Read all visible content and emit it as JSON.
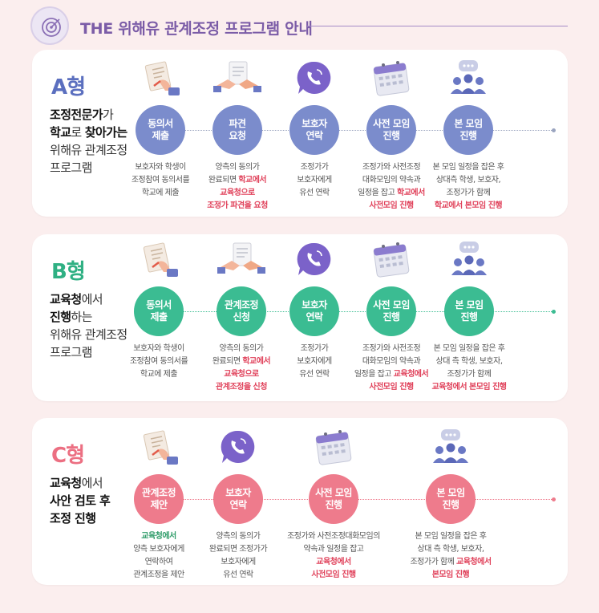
{
  "header": {
    "title": "THE 위해유 관계조정 프로그램 안내"
  },
  "cards": [
    {
      "label": "A형",
      "label_color": "#5b6fbf",
      "desc": [
        [
          {
            "t": "조정전문가",
            "b": true
          },
          {
            "t": "가",
            "b": false
          }
        ],
        [
          {
            "t": "학교",
            "b": true
          },
          {
            "t": "로 ",
            "b": false
          },
          {
            "t": "찾아가는",
            "b": true
          }
        ],
        [
          {
            "t": "위해유 관계조정",
            "b": false
          }
        ],
        [
          {
            "t": "프로그램",
            "b": false
          }
        ]
      ],
      "steps": [
        {
          "icon": "document-hand-icon",
          "circle": "동의서\n제출",
          "text": [
            [
              {
                "t": "보호자와 학생이"
              }
            ],
            [
              {
                "t": "조정참여 동의서를"
              }
            ],
            [
              {
                "t": "학교에 제출"
              }
            ]
          ]
        },
        {
          "icon": "handshake-paper-icon",
          "circle": "파견\n요청",
          "text": [
            [
              {
                "t": "양측의 동의가"
              }
            ],
            [
              {
                "t": "완료되면 "
              },
              {
                "t": "학교에서",
                "h": "r"
              }
            ],
            [
              {
                "t": "교육청으로",
                "h": "r"
              }
            ],
            [
              {
                "t": "조정가 파견을 요청",
                "h": "r"
              }
            ]
          ]
        },
        {
          "icon": "phone-chat-icon",
          "circle": "보호자\n연락",
          "text": [
            [
              {
                "t": "조정가가"
              }
            ],
            [
              {
                "t": "보호자에게"
              }
            ],
            [
              {
                "t": "유선 연락"
              }
            ]
          ]
        },
        {
          "icon": "calendar-icon",
          "circle": "사전 모임\n진행",
          "text": [
            [
              {
                "t": "조정가와 사전조정"
              }
            ],
            [
              {
                "t": "대화모임의 약속과"
              }
            ],
            [
              {
                "t": "일정을 잡고 "
              },
              {
                "t": "학교에서",
                "h": "r"
              }
            ],
            [
              {
                "t": "사전모임 진행",
                "h": "r"
              }
            ]
          ]
        },
        {
          "icon": "meeting-people-icon",
          "circle": "본 모임\n진행",
          "text": [
            [
              {
                "t": "본 모임 일정을 잡은 후"
              }
            ],
            [
              {
                "t": "상대측 학생, 보호자,"
              }
            ],
            [
              {
                "t": "조정가가 함께"
              }
            ],
            [
              {
                "t": "학교에서 본모임 진행",
                "h": "r"
              }
            ]
          ]
        }
      ]
    },
    {
      "label": "B형",
      "label_color": "#2fb083",
      "desc": [
        [
          {
            "t": "교육청",
            "b": true
          },
          {
            "t": "에서",
            "b": false
          }
        ],
        [
          {
            "t": "진행",
            "b": true
          },
          {
            "t": "하는",
            "b": false
          }
        ],
        [
          {
            "t": "위해유 관계조정",
            "b": false
          }
        ],
        [
          {
            "t": "프로그램",
            "b": false
          }
        ]
      ],
      "steps": [
        {
          "icon": "document-hand-icon",
          "circle": "동의서\n제출",
          "text": [
            [
              {
                "t": "보호자와 학생이"
              }
            ],
            [
              {
                "t": "조정참여 동의서를"
              }
            ],
            [
              {
                "t": "학교에 제출"
              }
            ]
          ]
        },
        {
          "icon": "handshake-paper-icon",
          "circle": "관계조정\n신청",
          "text": [
            [
              {
                "t": "양측의 동의가"
              }
            ],
            [
              {
                "t": "완료되면 "
              },
              {
                "t": "학교에서",
                "h": "r"
              }
            ],
            [
              {
                "t": "교육청으로",
                "h": "r"
              }
            ],
            [
              {
                "t": "관계조정을 신청",
                "h": "r"
              }
            ]
          ]
        },
        {
          "icon": "phone-chat-icon",
          "circle": "보호자\n연락",
          "text": [
            [
              {
                "t": "조정가가"
              }
            ],
            [
              {
                "t": "보호자에게"
              }
            ],
            [
              {
                "t": "유선 연락"
              }
            ]
          ]
        },
        {
          "icon": "calendar-icon",
          "circle": "사전 모임\n진행",
          "text": [
            [
              {
                "t": "조정가와 사전조정"
              }
            ],
            [
              {
                "t": "대화모임의 약속과"
              }
            ],
            [
              {
                "t": "일정을 잡고 "
              },
              {
                "t": "교육청에서",
                "h": "r"
              }
            ],
            [
              {
                "t": "사전모임 진행",
                "h": "r"
              }
            ]
          ]
        },
        {
          "icon": "meeting-people-icon",
          "circle": "본 모임\n진행",
          "text": [
            [
              {
                "t": "본 모임 일정을 잡은 후"
              }
            ],
            [
              {
                "t": "상대 측 학생, 보호자,"
              }
            ],
            [
              {
                "t": "조정가가 함께"
              }
            ],
            [
              {
                "t": "교육청에서 본모임 진행",
                "h": "r"
              }
            ]
          ]
        }
      ]
    },
    {
      "label": "C형",
      "label_color": "#ec6f82",
      "desc": [
        [
          {
            "t": "교육청",
            "b": true
          },
          {
            "t": "에서",
            "b": false
          }
        ],
        [
          {
            "t": "사안 검토 후",
            "b": true
          }
        ],
        [
          {
            "t": "조정 진행",
            "b": true
          }
        ]
      ],
      "steps": [
        {
          "icon": "document-hand-icon",
          "circle": "관계조정\n제안",
          "text": [
            [
              {
                "t": "교육청에서",
                "h": "g"
              }
            ],
            [
              {
                "t": "양측 보호자에게"
              }
            ],
            [
              {
                "t": "연락하여"
              }
            ],
            [
              {
                "t": "관계조정을 제안"
              }
            ]
          ]
        },
        {
          "icon": "phone-chat-icon",
          "circle": "보호자\n연락",
          "text": [
            [
              {
                "t": "양측의 동의가"
              }
            ],
            [
              {
                "t": "완료되면 조정가가"
              }
            ],
            [
              {
                "t": "보호자에게"
              }
            ],
            [
              {
                "t": "유선 연락"
              }
            ]
          ]
        },
        {
          "icon": "calendar-icon",
          "circle": "사전 모임\n진행",
          "text": [
            [
              {
                "t": "조정가와 사전조정대화모임의"
              }
            ],
            [
              {
                "t": "약속과 일정을 잡고"
              }
            ],
            [
              {
                "t": "교육청에서",
                "h": "r"
              }
            ],
            [
              {
                "t": "사전모임 진행",
                "h": "r"
              }
            ]
          ]
        },
        {
          "icon": "meeting-people-icon",
          "circle": "본 모임\n진행",
          "text": [
            [
              {
                "t": "본 모임 일정을 잡은 후"
              }
            ],
            [
              {
                "t": "상대 측 학생, 보호자,"
              }
            ],
            [
              {
                "t": "조정가가 함께 "
              },
              {
                "t": "교육청에서",
                "h": "r"
              }
            ],
            [
              {
                "t": "본모임 진행",
                "h": "r"
              }
            ]
          ]
        }
      ]
    }
  ]
}
